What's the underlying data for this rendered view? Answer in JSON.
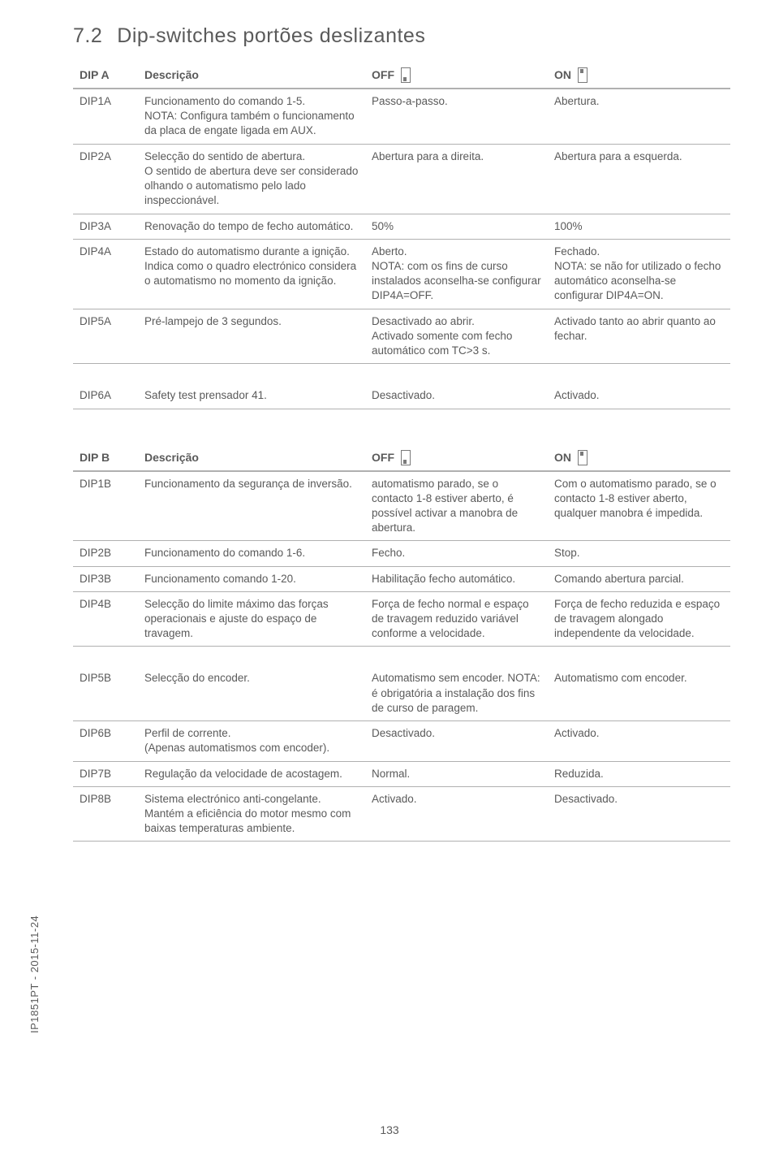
{
  "heading_number": "7.2",
  "heading_text": "Dip-switches portões deslizantes",
  "page_number": "133",
  "side_label": "IP1851PT - 2015-11-24",
  "tableA": {
    "header": {
      "col1": "DIP A",
      "col2": "Descrição",
      "col3": "OFF",
      "col4": "ON"
    },
    "rows": [
      {
        "id": "DIP1A",
        "desc": "Funcionamento do comando 1-5.\nNOTA: Configura também o funcionamento da placa de engate ligada em AUX.",
        "off": "Passo-a-passo.",
        "on": "Abertura."
      },
      {
        "id": "DIP2A",
        "desc": "Selecção do sentido de abertura.\nO sentido de abertura deve ser considerado olhando o automatismo pelo lado inspeccionável.",
        "off": "Abertura para a direita.",
        "on": "Abertura para a esquerda."
      },
      {
        "id": "DIP3A",
        "desc": "Renovação do tempo de fecho automático.",
        "off": "50%",
        "on": "100%"
      },
      {
        "id": "DIP4A",
        "desc": "Estado do automatismo durante a ignição.\nIndica como o quadro electrónico considera o automatismo no momento da ignição.",
        "off": "Aberto.\nNOTA: com os fins de curso instalados aconselha-se configurar DIP4A=OFF.",
        "on": "Fechado.\nNOTA: se não for utilizado o fecho automático aconselha-se configurar DIP4A=ON."
      },
      {
        "id": "DIP5A",
        "desc": "Pré-lampejo de 3 segundos.",
        "off": "Desactivado ao abrir.\nActivado somente com fecho automático com TC>3 s.",
        "on": "Activado tanto ao abrir quanto ao fechar."
      },
      {
        "id": "DIP6A",
        "desc": "Safety test prensador 41.",
        "off": "Desactivado.",
        "on": "Activado."
      }
    ]
  },
  "tableB": {
    "header": {
      "col1": "DIP B",
      "col2": "Descrição",
      "col3": "OFF",
      "col4": "ON"
    },
    "rows": [
      {
        "id": "DIP1B",
        "desc": "Funcionamento da segurança de inversão.",
        "off": "automatismo parado, se o contacto 1-8 estiver aberto, é possível activar a manobra de abertura.",
        "on": "Com o automatismo parado, se o contacto 1-8 estiver aberto, qualquer manobra é impedida."
      },
      {
        "id": "DIP2B",
        "desc": "Funcionamento do comando 1-6.",
        "off": "Fecho.",
        "on": "Stop."
      },
      {
        "id": "DIP3B",
        "desc": "Funcionamento comando 1-20.",
        "off": "Habilitação fecho automático.",
        "on": "Comando abertura parcial."
      },
      {
        "id": "DIP4B",
        "desc": "Selecção do limite máximo das forças operacionais e ajuste do espaço de travagem.",
        "off": "Força de fecho normal e espaço de travagem reduzido variável conforme a velocidade.",
        "on": "Força de fecho reduzida e espaço de travagem alongado independente da velocidade."
      },
      {
        "id": "DIP5B",
        "desc": "Selecção do encoder.",
        "off": "Automatismo sem encoder. NOTA: é obrigatória a instalação dos fins de curso de paragem.",
        "on": "Automatismo com encoder."
      },
      {
        "id": "DIP6B",
        "desc": "Perfil de corrente.\n(Apenas automatismos com encoder).",
        "off": "Desactivado.",
        "on": "Activado."
      },
      {
        "id": "DIP7B",
        "desc": "Regulação da velocidade de acostagem.",
        "off": "Normal.",
        "on": "Reduzida."
      },
      {
        "id": "DIP8B",
        "desc": "Sistema electrónico anti-congelante.\nMantém a eficiência do motor mesmo com baixas temperaturas ambiente.",
        "off": "Activado.",
        "on": "Desactivado."
      }
    ]
  },
  "tableA_gap_after": 5,
  "tableB_gap_after": 4
}
